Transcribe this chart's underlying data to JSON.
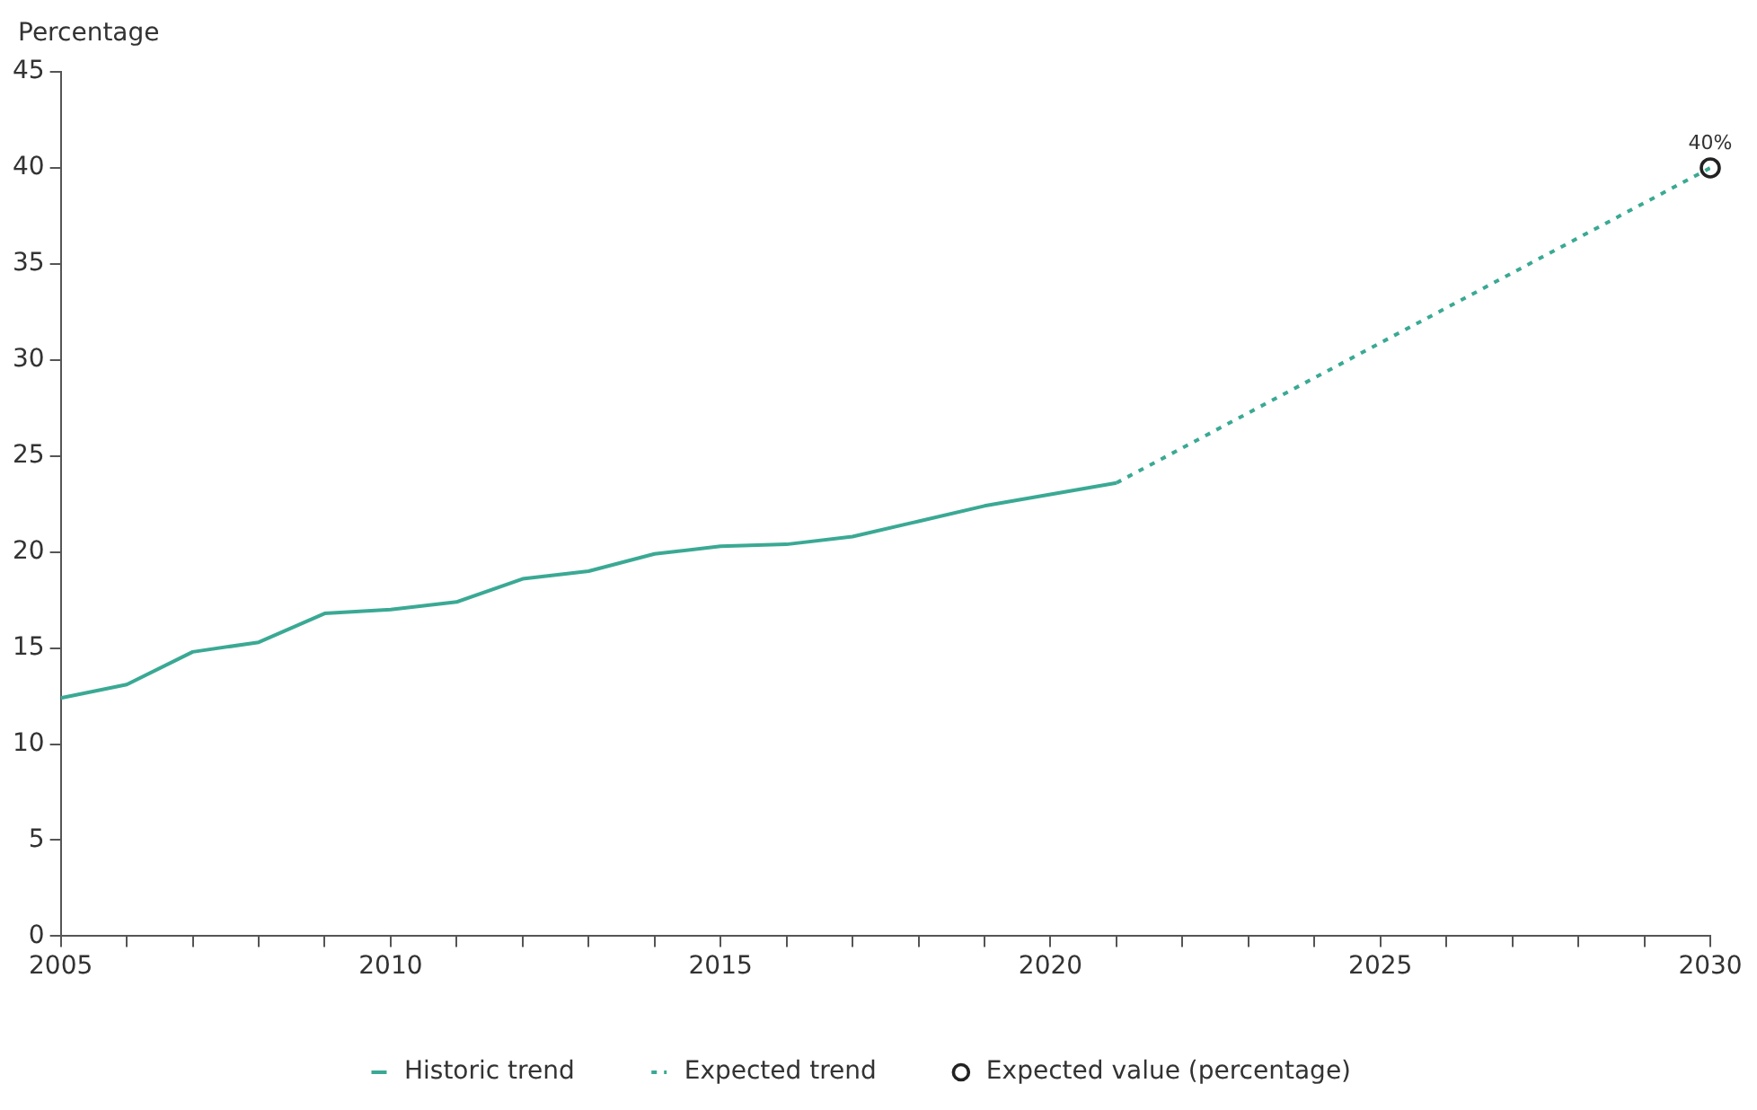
{
  "chart_data": {
    "type": "line",
    "ylabel": "Percentage",
    "xlim": [
      2005,
      2030
    ],
    "xticks": [
      2005,
      {
        "value": 2006,
        "label": null
      },
      {
        "value": 2007,
        "label": null
      },
      {
        "value": 2008,
        "label": null
      },
      {
        "value": 2009,
        "label": null
      },
      2010,
      {
        "value": 2011,
        "label": null
      },
      {
        "value": 2012,
        "label": null
      },
      {
        "value": 2013,
        "label": null
      },
      {
        "value": 2014,
        "label": null
      },
      2015,
      {
        "value": 2016,
        "label": null
      },
      {
        "value": 2017,
        "label": null
      },
      {
        "value": 2018,
        "label": null
      },
      {
        "value": 2019,
        "label": null
      },
      2020,
      {
        "value": 2021,
        "label": null
      },
      {
        "value": 2022,
        "label": null
      },
      {
        "value": 2023,
        "label": null
      },
      {
        "value": 2024,
        "label": null
      },
      2025,
      {
        "value": 2026,
        "label": null
      },
      {
        "value": 2027,
        "label": null
      },
      {
        "value": 2028,
        "label": null
      },
      {
        "value": 2029,
        "label": null
      },
      2030
    ],
    "ylim": [
      0,
      45
    ],
    "yticks": [
      0,
      5,
      10,
      15,
      20,
      25,
      30,
      35,
      40,
      45
    ],
    "grid": false,
    "legend": "bottom",
    "series": [
      {
        "name": "Historic trend",
        "type": "line",
        "color": "#3aa994",
        "line_style": "solid",
        "marker": "none",
        "x": [
          2005,
          2006,
          2007,
          2008,
          2009,
          2010,
          2011,
          2012,
          2013,
          2014,
          2015,
          2016,
          2017,
          2018,
          2019,
          2020,
          2021
        ],
        "values": [
          12.4,
          13.1,
          14.8,
          15.3,
          16.8,
          17.0,
          17.4,
          18.6,
          19.0,
          19.9,
          20.3,
          20.4,
          20.8,
          21.6,
          22.4,
          23.0,
          23.6
        ]
      },
      {
        "name": "Expected trend",
        "type": "line",
        "color": "#3aa994",
        "line_style": "dotted",
        "marker": "none",
        "x": [
          2021,
          2030
        ],
        "values": [
          23.6,
          40
        ]
      },
      {
        "name": "Expected value (percentage)",
        "type": "scatter",
        "color": "#222222",
        "marker": "circle",
        "x": [
          2030
        ],
        "values": [
          40
        ],
        "value_labels": [
          "40%"
        ]
      }
    ]
  }
}
